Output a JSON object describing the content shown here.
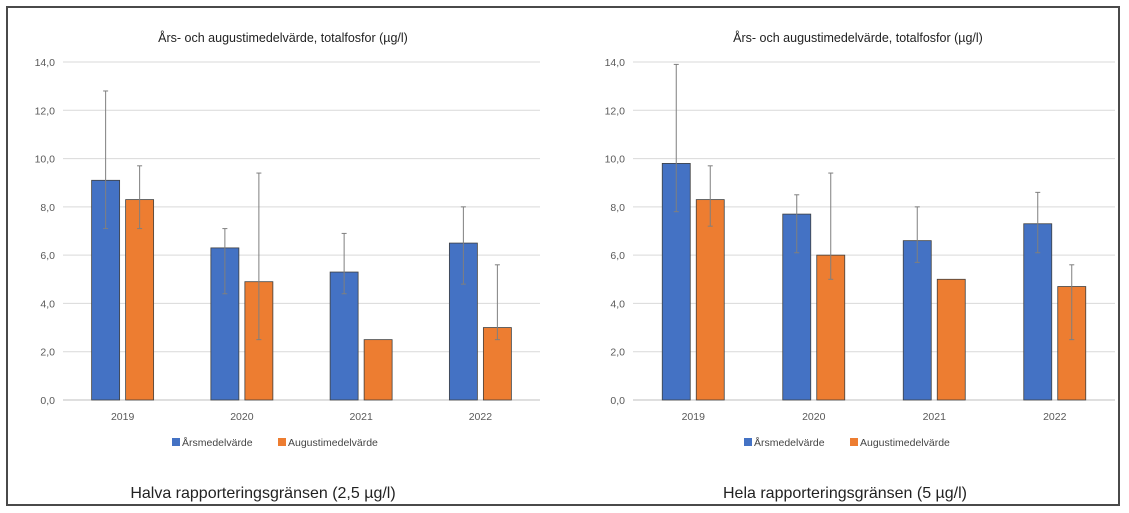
{
  "colors": {
    "series1": "#4472c4",
    "series2": "#ed7d31",
    "grid": "#d9d9d9",
    "errorbar": "#7f7f7f"
  },
  "captions": [
    "Halva rapporteringsgränsen (2,5 µg/l)",
    "Hela rapporteringsgränsen (5 µg/l)"
  ],
  "chart_data": [
    {
      "type": "bar",
      "title": "Års- och augustimedelvärde, totalfosfor (µg/l)",
      "categories": [
        "2019",
        "2020",
        "2021",
        "2022"
      ],
      "ylim": [
        0,
        14
      ],
      "ytick_labels": [
        "0,0",
        "2,0",
        "4,0",
        "6,0",
        "8,0",
        "10,0",
        "12,0",
        "14,0"
      ],
      "grid": true,
      "legend_position": "bottom",
      "series": [
        {
          "name": "Årsmedelvärde",
          "values": [
            9.1,
            6.3,
            5.3,
            6.5
          ],
          "err_low": [
            7.1,
            4.4,
            4.4,
            4.8
          ],
          "err_high": [
            12.8,
            7.1,
            6.9,
            8.0
          ]
        },
        {
          "name": "Augustimedelvärde",
          "values": [
            8.3,
            4.9,
            2.5,
            3.0
          ],
          "err_low": [
            7.1,
            2.5,
            null,
            2.5
          ],
          "err_high": [
            9.7,
            9.4,
            null,
            5.6
          ]
        }
      ]
    },
    {
      "type": "bar",
      "title": "Års- och augustimedelvärde, totalfosfor (µg/l)",
      "categories": [
        "2019",
        "2020",
        "2021",
        "2022"
      ],
      "ylim": [
        0,
        14
      ],
      "ytick_labels": [
        "0,0",
        "2,0",
        "4,0",
        "6,0",
        "8,0",
        "10,0",
        "12,0",
        "14,0"
      ],
      "grid": true,
      "legend_position": "bottom",
      "series": [
        {
          "name": "Årsmedelvärde",
          "values": [
            9.8,
            7.7,
            6.6,
            7.3
          ],
          "err_low": [
            7.8,
            6.1,
            5.7,
            6.1
          ],
          "err_high": [
            13.9,
            8.5,
            8.0,
            8.6
          ]
        },
        {
          "name": "Augustimedelvärde",
          "values": [
            8.3,
            6.0,
            5.0,
            4.7
          ],
          "err_low": [
            7.2,
            5.0,
            null,
            2.5
          ],
          "err_high": [
            9.7,
            9.4,
            null,
            5.6
          ]
        }
      ]
    }
  ]
}
